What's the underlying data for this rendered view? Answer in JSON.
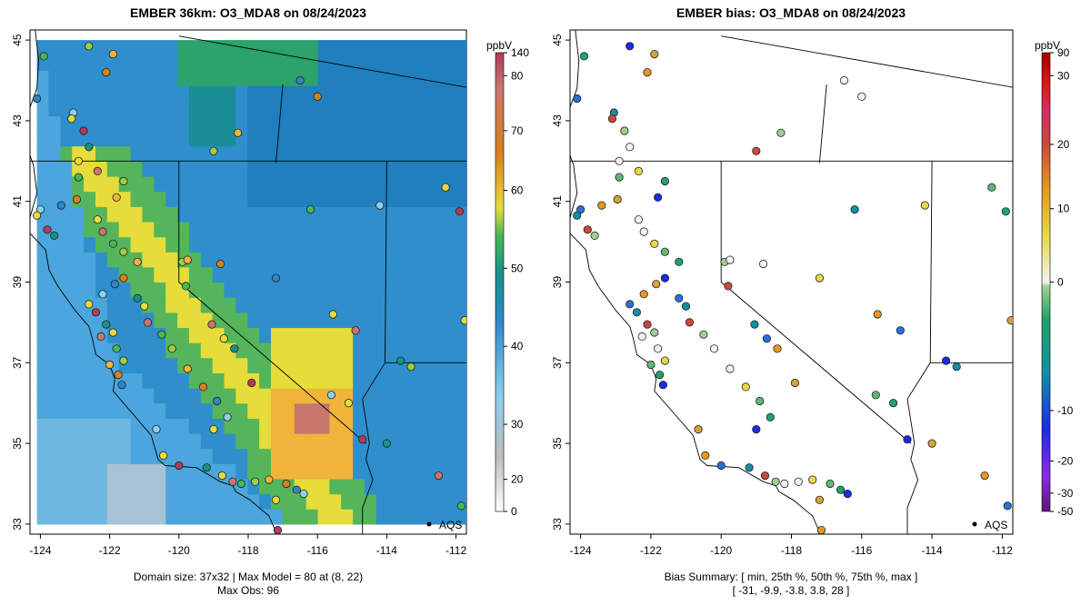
{
  "left_panel": {
    "title": "EMBER 36km: O3_MDA8 on 08/24/2023",
    "footer_line1": "Domain size: 37x32 | Max Model = 80 at (8, 22)",
    "footer_line2": "Max Obs: 96",
    "station_label": "AQS",
    "colorbar": {
      "unit": "ppbV",
      "ticks": [
        "0",
        "20",
        "30",
        "40",
        "50",
        "60",
        "70",
        "80",
        "140"
      ],
      "colors": [
        "#ffffff",
        "#bdbdbd",
        "#8ecfee",
        "#2d86c6",
        "#16928a",
        "#45b857",
        "#e6dc3a",
        "#d8821c",
        "#c9766d",
        "#b23a5a"
      ]
    }
  },
  "right_panel": {
    "title": "EMBER bias: O3_MDA8 on 08/24/2023",
    "footer_line1": "Bias Summary: [ min, 25th %, 50th %, 75th %, max ]",
    "footer_line2": "[ -31,   -9.9,   -3.8,   3.8,   28 ]",
    "station_label": "AQS",
    "colorbar": {
      "unit": "ppbV",
      "ticks": [
        "-50",
        "-30",
        "-20",
        "-10",
        "0",
        "10",
        "20",
        "30",
        "90"
      ],
      "colors": [
        "#5a1a7a",
        "#8a2be2",
        "#1a2be6",
        "#138ea3",
        "#1ea36a",
        "#9ed08f",
        "#f2f2f2",
        "#e6d84a",
        "#e39a22",
        "#c94a3a",
        "#d0306a",
        "#e01818",
        "#a00000"
      ]
    }
  },
  "axes": {
    "lat_ticks": [
      "33",
      "35",
      "37",
      "39",
      "41",
      "43",
      "45"
    ],
    "lon_ticks": [
      "-124",
      "-122",
      "-120",
      "-118",
      "-116",
      "-114",
      "-112"
    ],
    "lat_range": [
      33,
      45
    ],
    "lon_range": [
      -124.3,
      -111.7
    ]
  }
}
